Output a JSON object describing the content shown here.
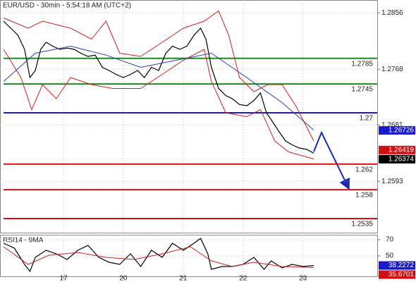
{
  "chart_data": [
    {
      "type": "line",
      "title": "EUR/USD - 30min - 5:54:18 AM (UTC+2)",
      "xlim": [
        -0.06,
        6.24
      ],
      "ylim": [
        1.2513,
        1.2876
      ],
      "yticks": [
        1.2593,
        1.2681,
        1.2768,
        1.2856
      ],
      "grid": true,
      "series": [
        {
          "color": "#000000",
          "x": [
            0,
            0.12,
            0.24,
            0.35,
            0.44,
            0.53,
            0.62,
            0.71,
            0.82,
            0.94,
            1.06,
            1.18,
            1.29,
            1.41,
            1.53,
            1.65,
            1.76,
            1.88,
            2.0,
            2.12,
            2.24,
            2.35,
            2.47,
            2.59,
            2.71,
            2.82,
            2.94,
            3.06,
            3.18,
            3.29,
            3.38,
            3.47,
            3.59,
            3.71,
            3.82,
            3.94,
            4.06,
            4.18,
            4.29,
            4.39,
            4.47,
            4.59,
            4.71,
            4.82,
            4.94,
            5.06,
            5.18
          ],
          "values": [
            1.2843,
            1.2832,
            1.2821,
            1.2799,
            1.2755,
            1.2766,
            1.2799,
            1.281,
            1.2804,
            1.2799,
            1.2801,
            1.2799,
            1.2793,
            1.2788,
            1.279,
            1.2771,
            1.2766,
            1.276,
            1.2755,
            1.276,
            1.2766,
            1.2755,
            1.2771,
            1.2766,
            1.2793,
            1.2804,
            1.2799,
            1.2804,
            1.2821,
            1.2832,
            1.2815,
            1.2771,
            1.2738,
            1.2727,
            1.2722,
            1.2713,
            1.2711,
            1.2719,
            1.2731,
            1.27,
            1.2689,
            1.2672,
            1.2656,
            1.265,
            1.2645,
            1.2643,
            1.2637
          ]
        },
        {
          "color": "#2a3fb8",
          "x": [
            0,
            0.53,
            1.12,
            1.71,
            2.29,
            2.88,
            3.47,
            4.06,
            4.65,
            5.18
          ],
          "values": [
            1.2749,
            1.2793,
            1.2804,
            1.279,
            1.2771,
            1.2782,
            1.2793,
            1.2755,
            1.2716,
            1.2673
          ]
        },
        {
          "color": "#d02020",
          "x": [
            0,
            0.41,
            0.65,
            1.12,
            1.47,
            1.71,
            1.94,
            2.29,
            2.65,
            3.0,
            3.35,
            3.59,
            3.76,
            3.94,
            4.18,
            4.41,
            4.65,
            4.88,
            5.18
          ],
          "values": [
            1.2848,
            1.2832,
            1.2843,
            1.2832,
            1.2815,
            1.2843,
            1.2793,
            1.2788,
            1.281,
            1.2832,
            1.2843,
            1.2859,
            1.2821,
            1.2755,
            1.2733,
            1.2744,
            1.2744,
            1.2711,
            1.2656
          ]
        },
        {
          "color": "#d02020",
          "x": [
            0,
            0.29,
            0.47,
            0.65,
            0.88,
            1.12,
            1.47,
            1.82,
            2.29,
            2.65,
            3.0,
            3.35,
            3.47,
            3.71,
            4.06,
            4.29,
            4.53,
            4.76,
            5.18
          ],
          "values": [
            1.2799,
            1.2755,
            1.2705,
            1.2744,
            1.2722,
            1.2755,
            1.2744,
            1.2738,
            1.2738,
            1.276,
            1.2782,
            1.2799,
            1.2749,
            1.27,
            1.2694,
            1.2705,
            1.2656,
            1.2639,
            1.2628
          ]
        }
      ],
      "levels": [
        {
          "value": 1.2785,
          "color": "#1e8a1e"
        },
        {
          "value": 1.2745,
          "color": "#1e8a1e"
        },
        {
          "value": 1.27,
          "color": "#1a1acc"
        },
        {
          "value": 1.262,
          "color": "#d01010"
        },
        {
          "value": 1.258,
          "color": "#d01010"
        },
        {
          "value": 1.2535,
          "color": "#d01010"
        }
      ],
      "price_labels": [
        {
          "value": 1.26726,
          "color": "#1a1acc"
        },
        {
          "value": 1.26419,
          "color": "#d01010"
        },
        {
          "value": 1.26374,
          "color": "#000000"
        }
      ]
    },
    {
      "type": "line",
      "title": "RSI14 - 9MA",
      "xlim": [
        -0.06,
        6.24
      ],
      "ylim": [
        24.8,
        76.1
      ],
      "xticks": [
        {
          "value": 1,
          "label": "17"
        },
        {
          "value": 2,
          "label": "20"
        },
        {
          "value": 3,
          "label": "21"
        },
        {
          "value": 4,
          "label": "22"
        },
        {
          "value": 5,
          "label": "23"
        }
      ],
      "yticks": [
        50,
        70
      ],
      "grid": true,
      "series": [
        {
          "color": "#000000",
          "x": [
            0,
            0.18,
            0.35,
            0.44,
            0.53,
            0.71,
            0.88,
            1.06,
            1.24,
            1.41,
            1.59,
            1.76,
            1.94,
            2.12,
            2.29,
            2.47,
            2.65,
            2.82,
            3.0,
            3.18,
            3.29,
            3.41,
            3.47,
            3.65,
            3.82,
            4.0,
            4.18,
            4.35,
            4.47,
            4.65,
            4.82,
            5.0,
            5.18
          ],
          "values": [
            65.7,
            59.6,
            39.6,
            30.9,
            48.3,
            57.0,
            52.6,
            45.7,
            57.0,
            63.0,
            48.3,
            42.2,
            39.6,
            52.6,
            37.0,
            57.0,
            48.3,
            65.7,
            57.0,
            65.7,
            71.7,
            52.6,
            33.5,
            37.0,
            37.0,
            39.6,
            48.3,
            33.5,
            43.9,
            35.2,
            39.6,
            37.0,
            38.2
          ]
        },
        {
          "color": "#d02020",
          "x": [
            0,
            0.41,
            0.76,
            1.24,
            1.71,
            2.18,
            2.65,
            3.12,
            3.47,
            3.82,
            4.18,
            4.65,
            5.18
          ],
          "values": [
            61.3,
            39.6,
            50.9,
            54.3,
            48.3,
            45.7,
            52.6,
            61.3,
            43.9,
            37.0,
            42.2,
            37.0,
            35.7
          ]
        }
      ],
      "price_labels": [
        {
          "value": 38.2272,
          "color": "#1a1acc"
        },
        {
          "value": 35.6701,
          "color": "#d01010"
        }
      ]
    }
  ]
}
